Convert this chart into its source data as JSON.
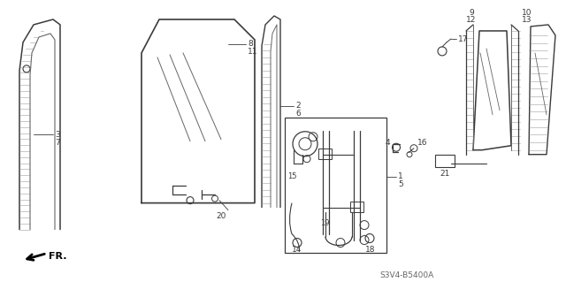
{
  "bg_color": "#ffffff",
  "footer_text": "S3V4-B5400A",
  "dgray": "#3a3a3a",
  "lgray": "#888888",
  "mgray": "#666666"
}
